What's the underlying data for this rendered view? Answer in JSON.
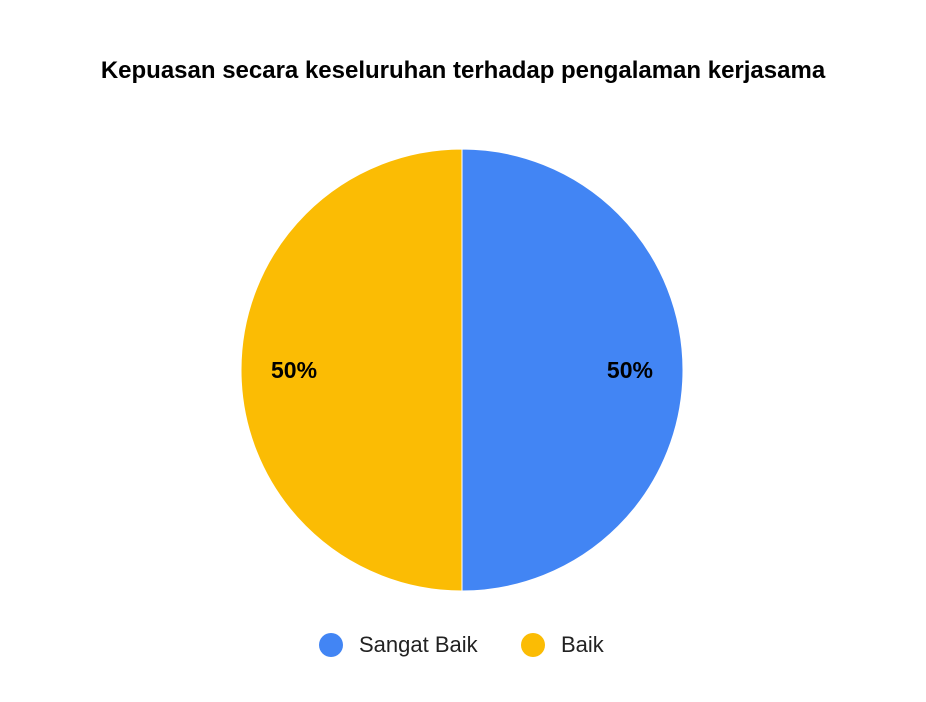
{
  "chart_data": {
    "type": "pie",
    "title": "Kepuasan secara keseluruhan terhadap pengalaman kerjasama",
    "categories": [
      "Sangat Baik",
      "Baik"
    ],
    "values": [
      50,
      50
    ],
    "labels": [
      "50%",
      "50%"
    ],
    "colors": [
      "#4285F4",
      "#FBBC04"
    ],
    "legend": "bottom"
  }
}
